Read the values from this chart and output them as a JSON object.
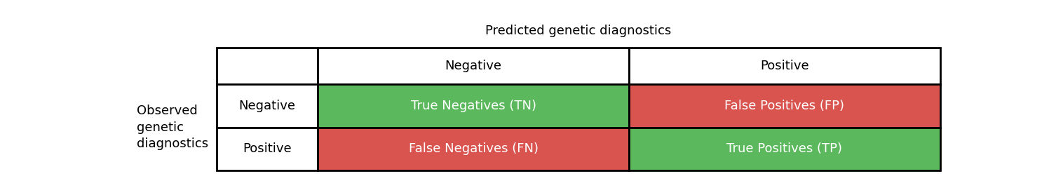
{
  "title": "Predicted genetic diagnostics",
  "ylabel_lines": [
    "Observed",
    "genetic",
    "diagnostics"
  ],
  "col_headers": [
    "Negative",
    "Positive"
  ],
  "row_labels": [
    "Negative",
    "Positive"
  ],
  "cells": [
    [
      "True Negatives (TN)",
      "False Positives (FP)"
    ],
    [
      "False Negatives (FN)",
      "True Positives (TP)"
    ]
  ],
  "cell_colors": [
    [
      "#5cb85c",
      "#d9534f"
    ],
    [
      "#d9534f",
      "#5cb85c"
    ]
  ],
  "cell_text_colors": [
    [
      "white",
      "white"
    ],
    [
      "white",
      "white"
    ]
  ],
  "header_text_color": "black",
  "title_fontsize": 13,
  "cell_fontsize": 13,
  "header_fontsize": 13,
  "ylabel_fontsize": 13,
  "border_color": "black",
  "border_linewidth": 2.0
}
